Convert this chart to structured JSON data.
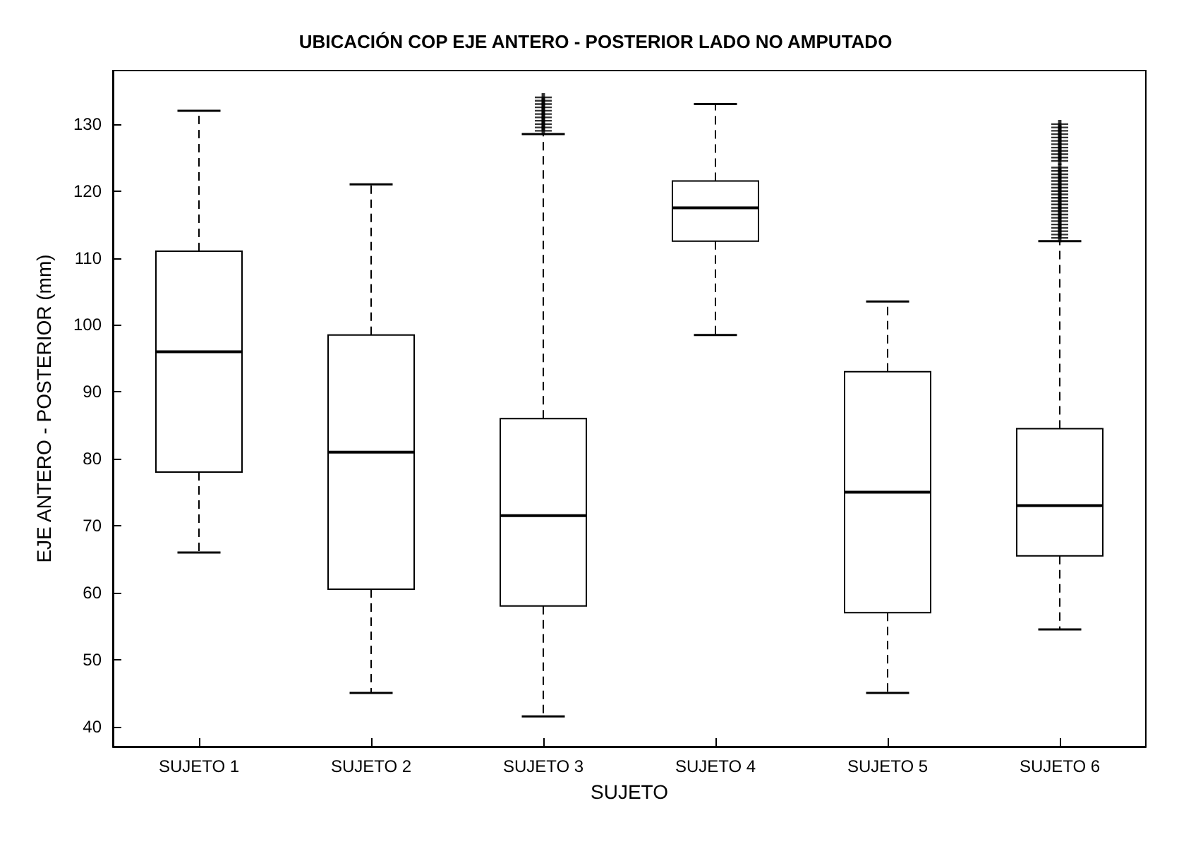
{
  "chart_data": {
    "type": "box",
    "title": "UBICACIÓN COP EJE ANTERO - POSTERIOR LADO NO AMPUTADO",
    "xlabel": "SUJETO",
    "ylabel": "EJE ANTERO - POSTERIOR (mm)",
    "categories": [
      "SUJETO 1",
      "SUJETO 2",
      "SUJETO 3",
      "SUJETO 4",
      "SUJETO 5",
      "SUJETO 6"
    ],
    "boxes": [
      {
        "low": 66,
        "q1": 78,
        "median": 96,
        "q3": 111,
        "high": 132
      },
      {
        "low": 45,
        "q1": 60.5,
        "median": 81,
        "q3": 98.5,
        "high": 121
      },
      {
        "low": 41.5,
        "q1": 58,
        "median": 71.5,
        "q3": 86,
        "high": 128.5,
        "outliers": [
          129,
          129.5,
          130,
          130.5,
          131,
          131.5,
          132,
          132.5,
          133,
          133.5,
          134
        ]
      },
      {
        "low": 98.5,
        "q1": 112.5,
        "median": 117.5,
        "q3": 121.5,
        "high": 133
      },
      {
        "low": 45,
        "q1": 57,
        "median": 75,
        "q3": 93,
        "high": 103.5
      },
      {
        "low": 54.5,
        "q1": 65.5,
        "median": 73,
        "q3": 84.5,
        "high": 112.5,
        "outliers": [
          113,
          113.5,
          114,
          114.5,
          115,
          115.5,
          116,
          116.5,
          117,
          117.5,
          118,
          118.5,
          119,
          119.5,
          120,
          120.5,
          121,
          121.5,
          122,
          122.5,
          123,
          123.5,
          124.5,
          125,
          125.5,
          126,
          126.5,
          127,
          127.5,
          128,
          128.5,
          129,
          129.5,
          130
        ]
      }
    ],
    "color": "#000000",
    "marker": "cross",
    "grid": false,
    "ylim": [
      37,
      138
    ],
    "yticks": [
      40,
      50,
      60,
      70,
      80,
      90,
      100,
      110,
      120,
      130
    ]
  }
}
